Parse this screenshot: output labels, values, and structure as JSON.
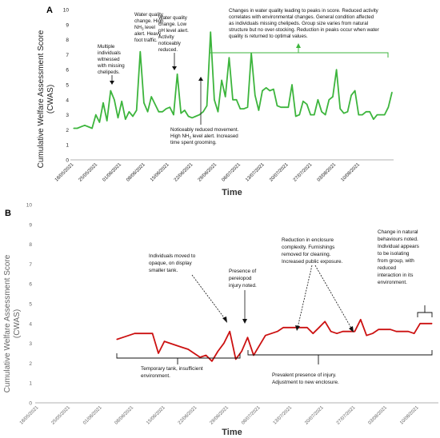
{
  "chart_data": [
    {
      "type": "line",
      "panel_label": "A",
      "xlabel": "Time",
      "ylabel_lines": [
        "Cumulative Welfare Assessment Score",
        "(CWAS)"
      ],
      "ylim": [
        0,
        10
      ],
      "yticks": [
        "0",
        "1",
        "2",
        "3",
        "4",
        "5",
        "6",
        "7",
        "8",
        "9",
        "10"
      ],
      "x_tick_labels": [
        "18/05/2021",
        "25/05/2021",
        "01/06/2021",
        "08/06/2021",
        "15/06/2021",
        "22/06/2021",
        "29/06/2021",
        "06/07/2021",
        "13/07/2021",
        "20/07/2021",
        "27/07/2021",
        "03/08/2021",
        "10/08/2021"
      ],
      "color": "#3db53d",
      "series": [
        {
          "values": [
            2.1,
            2.1,
            2.2,
            2.3,
            2.2,
            2.1,
            3.0,
            2.5,
            3.8,
            2.6,
            4.6,
            4.0,
            2.8,
            3.9,
            2.7,
            3.2,
            2.9,
            3.3,
            7.2,
            3.8,
            3.2,
            4.2,
            3.7,
            3.2,
            3.2,
            3.4,
            3.5,
            3.0,
            5.7,
            3.1,
            3.3,
            2.9,
            2.8,
            2.9,
            3.0,
            3.2,
            3.6,
            8.5,
            4.0,
            3.2,
            5.3,
            4.2,
            6.8,
            4.0,
            4.0,
            3.4,
            3.4,
            3.5,
            7.1,
            4.3,
            3.3,
            4.6,
            4.8,
            4.6,
            4.7,
            3.6,
            3.5,
            3.5,
            3.5,
            5.0,
            2.9,
            3.0,
            3.9,
            3.7,
            3.0,
            3.0,
            4.0,
            3.2,
            3.0,
            4.0,
            4.2,
            6.0,
            3.4,
            3.1,
            3.2,
            4.3,
            4.6,
            3.0,
            3.0,
            3.2,
            3.2,
            2.7,
            3.0,
            3.0,
            3.0,
            3.5,
            4.5
          ]
        }
      ],
      "annotations": [
        "Multiple individuals witnessed with missing chelipeds.",
        "Water quality change. High NH3 level alert. Heavy foot traffic.",
        "Water quality change. Low pH level alert. Activity noticeably reduced.",
        "Noticeably reduced movement. High NH3 level alert. Increased time spent grooming.",
        "Changes in water quality leading to peaks in score. Reduced activity correlates with environmental changes. General condition affected as individuals missing chelipeds. Group size varies from natural structure but no over-stocking. Reduction in peaks occur when water quality is returned to optimal values."
      ]
    },
    {
      "type": "line",
      "panel_label": "B",
      "xlabel": "Time",
      "ylabel_lines": [
        "Cumulative Welfare Assessment Score",
        "(CWAS)"
      ],
      "ylim": [
        0,
        10
      ],
      "yticks": [
        "0",
        "1",
        "2",
        "3",
        "4",
        "5",
        "6",
        "7",
        "8",
        "9",
        "10"
      ],
      "x_tick_labels": [
        "18/05/2021",
        "25/05/2021",
        "01/06/2021",
        "08/06/2021",
        "15/06/2021",
        "22/06/2021",
        "29/06/2021",
        "06/07/2021",
        "13/07/2021",
        "20/07/2021",
        "27/07/2021",
        "03/08/2021",
        "10/08/2021"
      ],
      "color": "#cc1111",
      "series": [
        {
          "values": [
            3.2,
            3.3,
            3.4,
            3.5,
            3.5,
            3.5,
            3.5,
            2.5,
            3.1,
            3.0,
            2.9,
            2.8,
            2.7,
            2.5,
            2.3,
            2.4,
            2.1,
            2.6,
            3.0,
            3.6,
            2.2,
            2.6,
            3.3,
            2.4,
            2.9,
            3.4,
            3.5,
            3.6,
            3.8,
            3.8,
            3.8,
            3.8,
            3.8,
            3.5,
            3.8,
            4.1,
            3.6,
            3.5,
            3.6,
            3.6,
            3.6,
            4.2,
            3.4,
            3.5,
            3.7,
            3.7,
            3.7,
            3.6,
            3.6,
            3.6,
            3.5,
            4.0,
            4.0,
            4.0
          ]
        }
      ],
      "annotations": [
        "Individuals moved to opaque, on display smaller tank.",
        "Presence of pereiopod injury noted.",
        "Reduction in enclosure complexity. Furnishings removed for cleaning. Increased public exposure.",
        "Change in natural behaviours noted. Individual appears to be isolating from group, with reduced interaction in its environment.",
        "Temporary tank, insufficient environment.",
        "Prevalent presence of injury. Adjustment to new enclosure."
      ]
    }
  ]
}
